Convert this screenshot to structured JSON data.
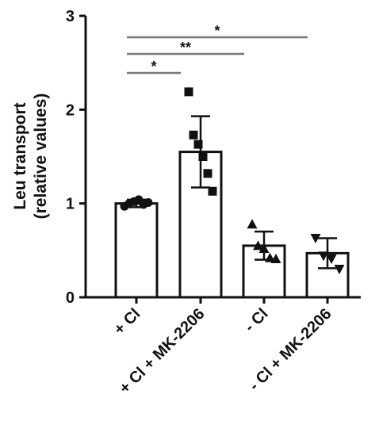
{
  "chart_data": {
    "type": "bar",
    "y_label": [
      "Leu transport",
      "(relative values)"
    ],
    "categories": [
      "+ Cl",
      "+ Cl + MK-2206",
      "- Cl",
      "- Cl + MK-2206"
    ],
    "values": [
      1.0,
      1.55,
      0.55,
      0.47
    ],
    "errors": [
      0.04,
      0.38,
      0.15,
      0.16
    ],
    "points": [
      [
        0.97,
        1.0,
        1.02,
        1.04,
        0.99,
        1.01
      ],
      [
        2.19,
        1.73,
        1.63,
        1.5,
        1.32,
        1.13
      ],
      [
        0.78,
        0.55,
        0.52,
        0.42,
        0.41
      ],
      [
        0.63,
        0.44,
        0.41,
        0.3
      ]
    ],
    "markers": [
      "circle",
      "square",
      "triangle",
      "triangle-down"
    ],
    "color": "#ffffff",
    "ylim": [
      0,
      3
    ],
    "yticks": [
      0,
      1,
      2,
      3
    ],
    "annotations": [
      "*",
      "**",
      "*"
    ]
  }
}
